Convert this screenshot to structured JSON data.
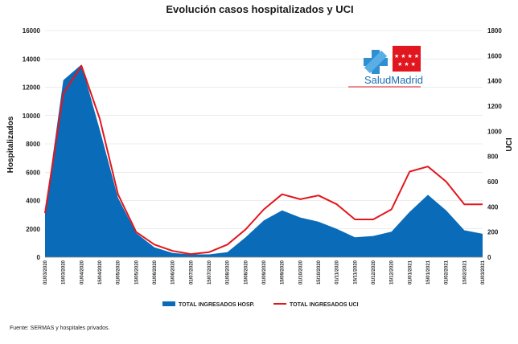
{
  "chart_data": {
    "type": "area",
    "title": "Evolución casos hospitalizados y UCI",
    "ylabel": "Hospitalizados",
    "y2label": "UCI",
    "ylim": [
      0,
      16000
    ],
    "y2lim": [
      0,
      1800
    ],
    "yticks": [
      "0",
      "2000",
      "4000",
      "6000",
      "8000",
      "10000",
      "12000",
      "14000",
      "16000"
    ],
    "y2ticks": [
      "0",
      "200",
      "400",
      "600",
      "800",
      "1000",
      "1200",
      "1400",
      "1600",
      "1800"
    ],
    "x": [
      "01/03/2020",
      "15/03/2020",
      "01/04/2020",
      "15/04/2020",
      "01/05/2020",
      "15/05/2020",
      "01/06/2020",
      "15/06/2020",
      "01/07/2020",
      "15/07/2020",
      "01/08/2020",
      "15/08/2020",
      "01/09/2020",
      "15/09/2020",
      "01/10/2020",
      "15/10/2020",
      "01/11/2020",
      "15/11/2020",
      "01/12/2020",
      "15/12/2020",
      "01/01/2021",
      "15/01/2021",
      "01/02/2021",
      "15/02/2021",
      "01/03/2021"
    ],
    "series": [
      {
        "name": "TOTAL INGRESADOS HOSP.",
        "kind": "area",
        "axis": "left",
        "color": "#0a6bb8",
        "values": [
          3200,
          12500,
          13600,
          9000,
          4200,
          1700,
          700,
          300,
          200,
          200,
          350,
          1400,
          2600,
          3300,
          2800,
          2500,
          2000,
          1400,
          1500,
          1800,
          3200,
          4400,
          3300,
          1900,
          1650
        ]
      },
      {
        "name": "TOTAL INGRESADOS UCI",
        "kind": "line",
        "axis": "right",
        "color": "#e3161b",
        "values": [
          350,
          1300,
          1520,
          1100,
          500,
          200,
          100,
          50,
          25,
          40,
          100,
          220,
          380,
          500,
          460,
          490,
          420,
          300,
          300,
          380,
          680,
          720,
          600,
          420,
          420
        ]
      }
    ],
    "legend_position": "bottom",
    "source": "Fuente: SERMAS y hospitales privados.",
    "logo_text": "SaludMadrid"
  }
}
